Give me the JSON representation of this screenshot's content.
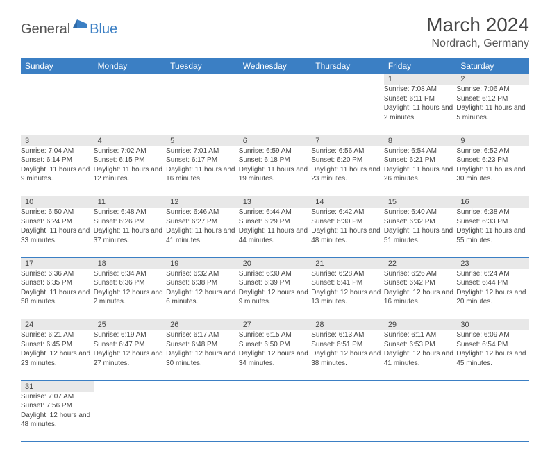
{
  "logo": {
    "part1": "General",
    "part2": "Blue"
  },
  "title": "March 2024",
  "location": "Nordrach, Germany",
  "colors": {
    "header_bg": "#3b7fc4",
    "header_text": "#ffffff",
    "daynum_bg": "#e8e8e8",
    "border": "#3b7fc4",
    "logo_gray": "#555555",
    "logo_blue": "#3b7fc4"
  },
  "weekdays": [
    "Sunday",
    "Monday",
    "Tuesday",
    "Wednesday",
    "Thursday",
    "Friday",
    "Saturday"
  ],
  "weeks": [
    [
      null,
      null,
      null,
      null,
      null,
      {
        "n": "1",
        "sr": "7:08 AM",
        "ss": "6:11 PM",
        "dl": "11 hours and 2 minutes."
      },
      {
        "n": "2",
        "sr": "7:06 AM",
        "ss": "6:12 PM",
        "dl": "11 hours and 5 minutes."
      }
    ],
    [
      {
        "n": "3",
        "sr": "7:04 AM",
        "ss": "6:14 PM",
        "dl": "11 hours and 9 minutes."
      },
      {
        "n": "4",
        "sr": "7:02 AM",
        "ss": "6:15 PM",
        "dl": "11 hours and 12 minutes."
      },
      {
        "n": "5",
        "sr": "7:01 AM",
        "ss": "6:17 PM",
        "dl": "11 hours and 16 minutes."
      },
      {
        "n": "6",
        "sr": "6:59 AM",
        "ss": "6:18 PM",
        "dl": "11 hours and 19 minutes."
      },
      {
        "n": "7",
        "sr": "6:56 AM",
        "ss": "6:20 PM",
        "dl": "11 hours and 23 minutes."
      },
      {
        "n": "8",
        "sr": "6:54 AM",
        "ss": "6:21 PM",
        "dl": "11 hours and 26 minutes."
      },
      {
        "n": "9",
        "sr": "6:52 AM",
        "ss": "6:23 PM",
        "dl": "11 hours and 30 minutes."
      }
    ],
    [
      {
        "n": "10",
        "sr": "6:50 AM",
        "ss": "6:24 PM",
        "dl": "11 hours and 33 minutes."
      },
      {
        "n": "11",
        "sr": "6:48 AM",
        "ss": "6:26 PM",
        "dl": "11 hours and 37 minutes."
      },
      {
        "n": "12",
        "sr": "6:46 AM",
        "ss": "6:27 PM",
        "dl": "11 hours and 41 minutes."
      },
      {
        "n": "13",
        "sr": "6:44 AM",
        "ss": "6:29 PM",
        "dl": "11 hours and 44 minutes."
      },
      {
        "n": "14",
        "sr": "6:42 AM",
        "ss": "6:30 PM",
        "dl": "11 hours and 48 minutes."
      },
      {
        "n": "15",
        "sr": "6:40 AM",
        "ss": "6:32 PM",
        "dl": "11 hours and 51 minutes."
      },
      {
        "n": "16",
        "sr": "6:38 AM",
        "ss": "6:33 PM",
        "dl": "11 hours and 55 minutes."
      }
    ],
    [
      {
        "n": "17",
        "sr": "6:36 AM",
        "ss": "6:35 PM",
        "dl": "11 hours and 58 minutes."
      },
      {
        "n": "18",
        "sr": "6:34 AM",
        "ss": "6:36 PM",
        "dl": "12 hours and 2 minutes."
      },
      {
        "n": "19",
        "sr": "6:32 AM",
        "ss": "6:38 PM",
        "dl": "12 hours and 6 minutes."
      },
      {
        "n": "20",
        "sr": "6:30 AM",
        "ss": "6:39 PM",
        "dl": "12 hours and 9 minutes."
      },
      {
        "n": "21",
        "sr": "6:28 AM",
        "ss": "6:41 PM",
        "dl": "12 hours and 13 minutes."
      },
      {
        "n": "22",
        "sr": "6:26 AM",
        "ss": "6:42 PM",
        "dl": "12 hours and 16 minutes."
      },
      {
        "n": "23",
        "sr": "6:24 AM",
        "ss": "6:44 PM",
        "dl": "12 hours and 20 minutes."
      }
    ],
    [
      {
        "n": "24",
        "sr": "6:21 AM",
        "ss": "6:45 PM",
        "dl": "12 hours and 23 minutes."
      },
      {
        "n": "25",
        "sr": "6:19 AM",
        "ss": "6:47 PM",
        "dl": "12 hours and 27 minutes."
      },
      {
        "n": "26",
        "sr": "6:17 AM",
        "ss": "6:48 PM",
        "dl": "12 hours and 30 minutes."
      },
      {
        "n": "27",
        "sr": "6:15 AM",
        "ss": "6:50 PM",
        "dl": "12 hours and 34 minutes."
      },
      {
        "n": "28",
        "sr": "6:13 AM",
        "ss": "6:51 PM",
        "dl": "12 hours and 38 minutes."
      },
      {
        "n": "29",
        "sr": "6:11 AM",
        "ss": "6:53 PM",
        "dl": "12 hours and 41 minutes."
      },
      {
        "n": "30",
        "sr": "6:09 AM",
        "ss": "6:54 PM",
        "dl": "12 hours and 45 minutes."
      }
    ],
    [
      {
        "n": "31",
        "sr": "7:07 AM",
        "ss": "7:56 PM",
        "dl": "12 hours and 48 minutes."
      },
      null,
      null,
      null,
      null,
      null,
      null
    ]
  ],
  "labels": {
    "sunrise": "Sunrise:",
    "sunset": "Sunset:",
    "daylight": "Daylight:"
  }
}
